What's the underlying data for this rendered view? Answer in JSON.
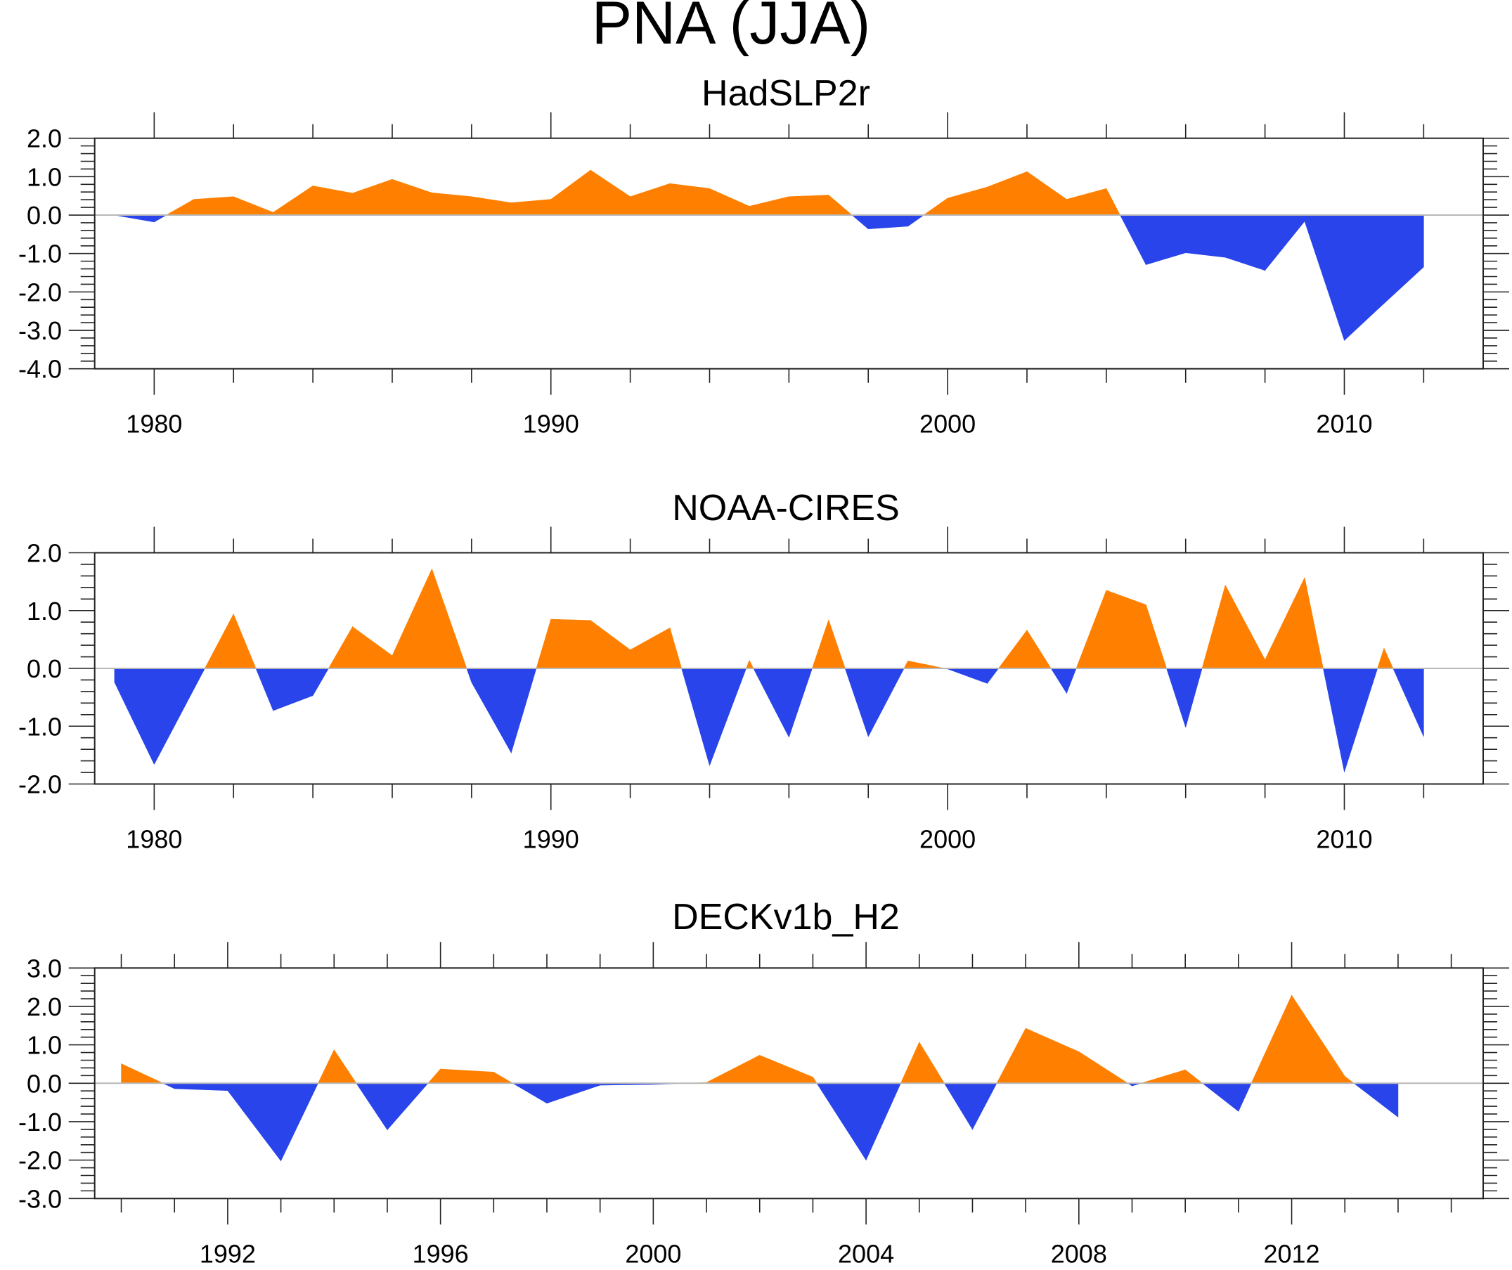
{
  "figure": {
    "title": "PNA (JJA)"
  },
  "colors": {
    "positive": "#FF8000",
    "negative": "#2844EA",
    "zero_line": "#B8B8B8",
    "axis": "#222222"
  },
  "chart_data": [
    {
      "type": "area",
      "title": "HadSLP2r",
      "xlabel": "",
      "ylabel": "",
      "xlim": [
        1978.5,
        2013.5
      ],
      "ylim": [
        -4.0,
        2.0
      ],
      "yticks": [
        2.0,
        1.0,
        0.0,
        -1.0,
        -2.0,
        -3.0,
        -4.0
      ],
      "ytick_labels": [
        "2.0",
        "1.0",
        "0.0",
        "-1.0",
        "-2.0",
        "-3.0",
        "-4.0"
      ],
      "xticks": [
        1980,
        1990,
        2000,
        2010
      ],
      "xtick_labels": [
        "1980",
        "1990",
        "2000",
        "2010"
      ],
      "x_minor_step": 2,
      "y_minor_step": 0.2,
      "grid": false,
      "fill_above_zero": "orange",
      "fill_below_zero": "blue",
      "x": [
        1979,
        1980,
        1981,
        1982,
        1983,
        1984,
        1985,
        1986,
        1987,
        1988,
        1989,
        1990,
        1991,
        1992,
        1993,
        1994,
        1995,
        1996,
        1997,
        1998,
        1999,
        2000,
        2001,
        2002,
        2003,
        2004,
        2005,
        2006,
        2007,
        2008,
        2009,
        2010,
        2011,
        2012
      ],
      "values": [
        0.0,
        -0.18,
        0.41,
        0.48,
        0.07,
        0.76,
        0.57,
        0.93,
        0.58,
        0.48,
        0.32,
        0.41,
        1.17,
        0.48,
        0.82,
        0.69,
        0.23,
        0.48,
        0.52,
        -0.36,
        -0.29,
        0.44,
        0.73,
        1.13,
        0.41,
        0.69,
        -1.29,
        -0.98,
        -1.1,
        -1.44,
        -0.16,
        -3.26,
        -2.3,
        -1.35
      ]
    },
    {
      "type": "area",
      "title": "NOAA-CIRES",
      "xlabel": "",
      "ylabel": "",
      "xlim": [
        1978.5,
        2013.5
      ],
      "ylim": [
        -2.0,
        2.0
      ],
      "yticks": [
        2.0,
        1.0,
        0.0,
        -1.0,
        -2.0
      ],
      "ytick_labels": [
        "2.0",
        "1.0",
        "0.0",
        "-1.0",
        "-2.0"
      ],
      "xticks": [
        1980,
        1990,
        2000,
        2010
      ],
      "xtick_labels": [
        "1980",
        "1990",
        "2000",
        "2010"
      ],
      "x_minor_step": 2,
      "y_minor_step": 0.2,
      "grid": false,
      "fill_above_zero": "orange",
      "fill_below_zero": "blue",
      "x": [
        1979,
        1980,
        1981,
        1982,
        1983,
        1984,
        1985,
        1986,
        1987,
        1988,
        1989,
        1990,
        1991,
        1992,
        1993,
        1994,
        1995,
        1996,
        1997,
        1998,
        1999,
        2000,
        2001,
        2002,
        2003,
        2004,
        2005,
        2006,
        2007,
        2008,
        2009,
        2010,
        2011,
        2012
      ],
      "values": [
        -0.24,
        -1.66,
        -0.36,
        0.94,
        -0.73,
        -0.47,
        0.72,
        0.22,
        1.72,
        -0.24,
        -1.46,
        0.85,
        0.83,
        0.32,
        0.7,
        -1.68,
        0.14,
        -1.19,
        0.84,
        -1.18,
        0.13,
        -0.01,
        -0.26,
        0.66,
        -0.43,
        1.35,
        1.1,
        -1.02,
        1.44,
        0.15,
        1.57,
        -1.79,
        0.35,
        -1.18
      ]
    },
    {
      "type": "area",
      "title": "DECKv1b_H2",
      "xlabel": "",
      "ylabel": "",
      "xlim": [
        1989.5,
        2015.6
      ],
      "ylim": [
        -3.0,
        3.0
      ],
      "yticks": [
        3.0,
        2.0,
        1.0,
        0.0,
        -1.0,
        -2.0,
        -3.0
      ],
      "ytick_labels": [
        "3.0",
        "2.0",
        "1.0",
        "0.0",
        "-1.0",
        "-2.0",
        "-3.0"
      ],
      "xticks": [
        1992,
        1996,
        2000,
        2004,
        2008,
        2012
      ],
      "xtick_labels": [
        "1992",
        "1996",
        "2000",
        "2004",
        "2008",
        "2012"
      ],
      "x_minor_step": 1,
      "y_minor_step": 0.2,
      "grid": false,
      "fill_above_zero": "orange",
      "fill_below_zero": "blue",
      "x": [
        1990,
        1991,
        1992,
        1993,
        1994,
        1995,
        1996,
        1997,
        1998,
        1999,
        2000,
        2001,
        2002,
        2003,
        2004,
        2005,
        2006,
        2007,
        2008,
        2009,
        2010,
        2011,
        2012,
        2013,
        2014
      ],
      "values": [
        0.51,
        -0.14,
        -0.19,
        -2.02,
        0.87,
        -1.21,
        0.37,
        0.29,
        -0.52,
        -0.05,
        -0.03,
        0.02,
        0.73,
        0.16,
        -2.0,
        1.07,
        -1.2,
        1.43,
        0.82,
        -0.07,
        0.35,
        -0.73,
        2.29,
        0.18,
        -0.88
      ]
    }
  ]
}
